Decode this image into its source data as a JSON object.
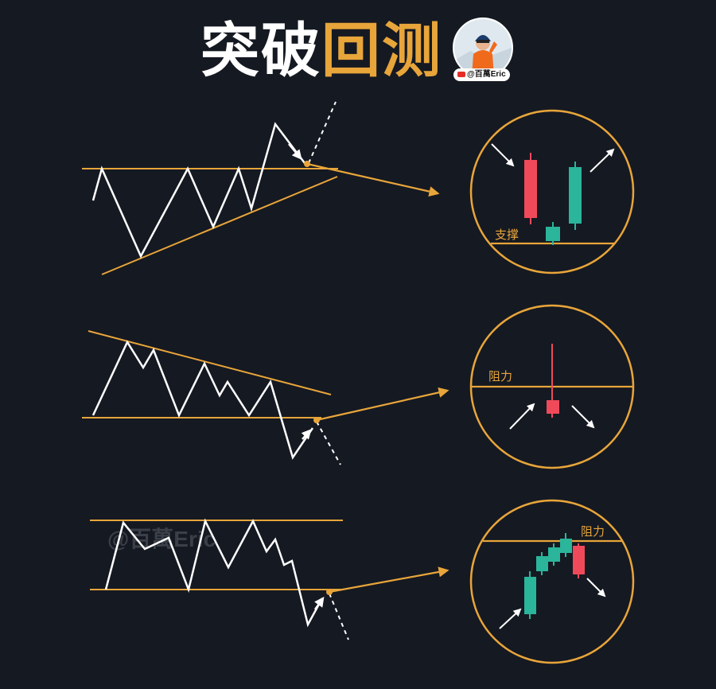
{
  "title": {
    "part1": "突破",
    "part2": "回测"
  },
  "author_tag": "@百萬Eric",
  "watermark": "@百萬Eric",
  "labels": {
    "support": "支撑",
    "resistance_1": "阻力",
    "resistance_2": "阻力"
  },
  "colors": {
    "background": "#151922",
    "accent": "#e8a53a",
    "line": "#ffffff",
    "bull_candle": "#2bb59b",
    "bear_candle": "#f04a5a"
  }
}
